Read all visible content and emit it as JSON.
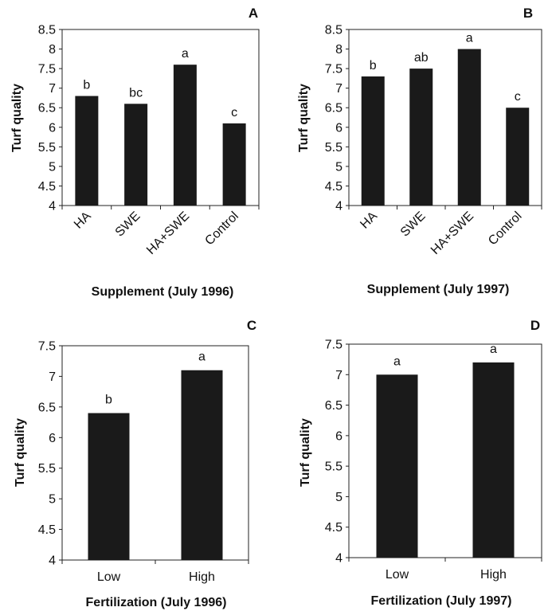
{
  "chart_data": [
    {
      "type": "bar",
      "panel_label": "A",
      "categories": [
        "HA",
        "SWE",
        "HA+SWE",
        "Control"
      ],
      "values": [
        6.8,
        6.6,
        7.6,
        6.1
      ],
      "letters": [
        "b",
        "bc",
        "a",
        "c"
      ],
      "ylabel": "Turf quality",
      "xlabel": "Supplement (July 1996)",
      "ylim": [
        4,
        8.5
      ],
      "yticks": [
        "4",
        "4.5",
        "5",
        "5.5",
        "6",
        "6.5",
        "7",
        "7.5",
        "8",
        "8.5"
      ],
      "grid": false,
      "bar_color": "#1a1a1a"
    },
    {
      "type": "bar",
      "panel_label": "B",
      "categories": [
        "HA",
        "SWE",
        "HA+SWE",
        "Control"
      ],
      "values": [
        7.3,
        7.5,
        8.0,
        6.5
      ],
      "letters": [
        "b",
        "ab",
        "a",
        "c"
      ],
      "ylabel": "Turf quality",
      "xlabel": "Supplement (July 1997)",
      "ylim": [
        4,
        8.5
      ],
      "yticks": [
        "4",
        "4.5",
        "5",
        "5.5",
        "6",
        "6.5",
        "7",
        "7.5",
        "8",
        "8.5"
      ],
      "grid": false,
      "bar_color": "#1a1a1a"
    },
    {
      "type": "bar",
      "panel_label": "C",
      "categories": [
        "Low",
        "High"
      ],
      "values": [
        6.4,
        7.1
      ],
      "letters": [
        "b",
        "a"
      ],
      "ylabel": "Turf quality",
      "xlabel": "Fertilization (July 1996)",
      "ylim": [
        4,
        7.5
      ],
      "yticks": [
        "4",
        "4.5",
        "5",
        "5.5",
        "6",
        "6.5",
        "7",
        "7.5"
      ],
      "grid": false,
      "bar_color": "#1a1a1a"
    },
    {
      "type": "bar",
      "panel_label": "D",
      "categories": [
        "Low",
        "High"
      ],
      "values": [
        7.0,
        7.2
      ],
      "letters": [
        "a",
        "a"
      ],
      "ylabel": "Turf quality",
      "xlabel": "Fertilization (July 1997)",
      "ylim": [
        4,
        7.5
      ],
      "yticks": [
        "4",
        "4.5",
        "5",
        "5.5",
        "6",
        "6.5",
        "7",
        "7.5"
      ],
      "grid": false,
      "bar_color": "#1a1a1a"
    }
  ]
}
